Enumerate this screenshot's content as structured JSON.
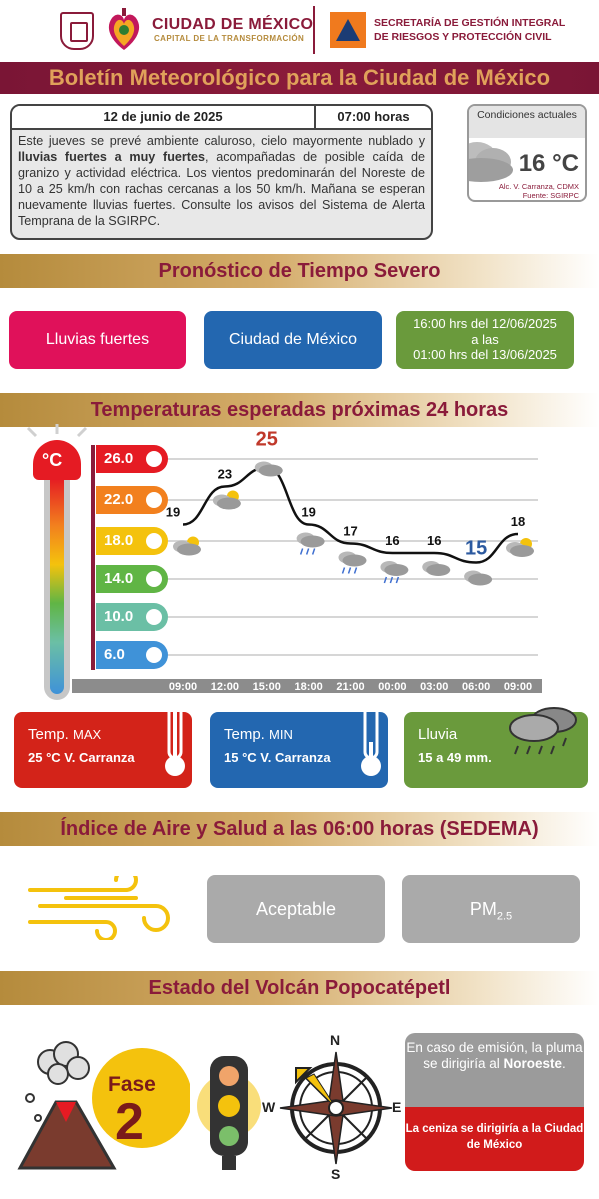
{
  "header": {
    "org_title": "CIUDAD DE MÉXICO",
    "org_subtitle": "CAPITAL DE LA TRANSFORMACIÓN",
    "agency_line1": "SECRETARÍA DE GESTIÓN INTEGRAL",
    "agency_line2": "DE RIESGOS Y PROTECCIÓN CIVIL",
    "brand_color": "#8a1b3a"
  },
  "title": "Boletín Meteorológico para la Ciudad de México",
  "bulletin": {
    "date": "12 de junio de 2025",
    "time": "07:00 horas",
    "text_pre": "Este jueves se prevé ambiente caluroso, cielo mayormente nublado y ",
    "text_bold": "lluvias fuertes a muy fuertes",
    "text_post": ", acompañadas de posible caída de granizo y actividad eléctrica. Los vientos predominarán del Noreste de 10 a 25 km/h con rachas cercanas a los 50 km/h. Mañana se esperan nuevamente lluvias fuertes. Consulte los avisos del Sistema de Alerta Temprana de la SGIRPC."
  },
  "current": {
    "heading": "Condiciones actuales",
    "temp": "16 °C",
    "location": "Alc. V. Carranza, CDMX",
    "source": "Fuente: SGIRPC",
    "icon": "cloud-icon"
  },
  "severe": {
    "heading": "Pronóstico de Tiempo Severo",
    "phenomenon": "Lluvias fuertes",
    "area": "Ciudad de México",
    "period_line1": "16:00 hrs del 12/06/2025",
    "period_line2": "a las",
    "period_line3": "01:00 hrs del 13/06/2025"
  },
  "temps": {
    "heading": "Temperaturas esperadas próximas 24 horas",
    "thermo_label": "°C",
    "scale": [
      "26.0",
      "22.0",
      "18.0",
      "14.0",
      "10.0",
      "6.0"
    ]
  },
  "chart_data": {
    "type": "line",
    "x": [
      "09:00",
      "12:00",
      "15:00",
      "18:00",
      "21:00",
      "00:00",
      "03:00",
      "06:00",
      "09:00"
    ],
    "values": [
      19,
      23,
      25,
      19,
      17,
      16,
      16,
      15,
      18
    ],
    "labels": [
      "19",
      "23",
      "25",
      "19",
      "17",
      "16",
      "16",
      "15",
      "18"
    ],
    "icons": [
      "partly-cloudy-icon",
      "partly-cloudy-icon",
      "cloud-icon",
      "rain-cloud-icon",
      "rain-cloud-icon",
      "rain-cloud-icon",
      "cloud-icon",
      "cloud-icon",
      "partly-cloudy-icon"
    ],
    "max_index": 2,
    "min_index": 7,
    "colors": {
      "max": "#c0392b",
      "min": "#2c5aa0",
      "line": "#111111"
    }
  },
  "stats": {
    "max_label": "Temp.",
    "max_label_small": "MAX",
    "max_value": "25 °C  V. Carranza",
    "min_label": "Temp.",
    "min_label_small": "MIN",
    "min_value": "15 °C  V. Carranza",
    "rain_label": "Lluvia",
    "rain_value": "15 a 49 mm."
  },
  "air": {
    "heading": "Índice de Aire y Salud a las 06:00 horas (SEDEMA)",
    "status": "Aceptable",
    "pollutant": "PM",
    "pollutant_sub": "2.5",
    "icon": "wind-icon"
  },
  "volcano": {
    "heading": "Estado del Volcán Popocatépetl",
    "phase_label": "Fase",
    "phase_value": "2",
    "compass": {
      "n": "N",
      "s": "S",
      "e": "E",
      "w": "W"
    },
    "plume_pre": "En caso de emisión, la pluma se dirigiría al ",
    "plume_dir": "Noroeste",
    "plume_post": ".",
    "ash_text": "La ceniza se dirigiría a la Ciudad de México"
  }
}
